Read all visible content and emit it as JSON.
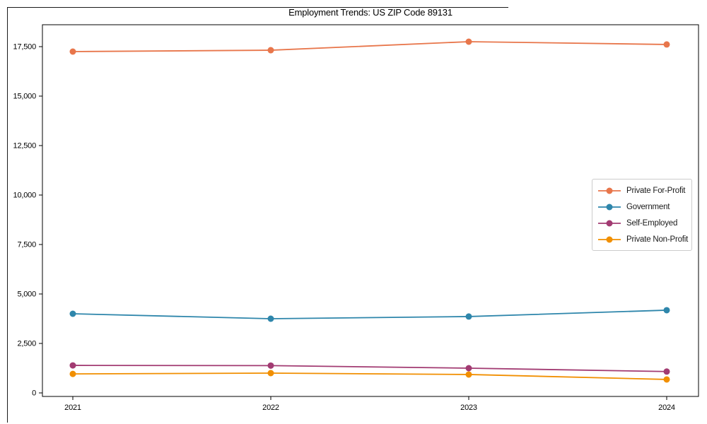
{
  "chart_data": {
    "type": "line",
    "title": "Employment Trends: US ZIP Code 89131",
    "x": [
      2021,
      2022,
      2023,
      2024
    ],
    "series": [
      {
        "name": "Private For-Profit",
        "color": "#E8764B",
        "values": [
          17250,
          17320,
          17750,
          17610
        ]
      },
      {
        "name": "Government",
        "color": "#2E86AB",
        "values": [
          4000,
          3750,
          3860,
          4180
        ]
      },
      {
        "name": "Self-Employed",
        "color": "#A23B72",
        "values": [
          1390,
          1380,
          1250,
          1080
        ]
      },
      {
        "name": "Private Non-Profit",
        "color": "#F18F01",
        "values": [
          960,
          1000,
          930,
          680
        ]
      }
    ],
    "xlabel": "",
    "ylabel": "",
    "ylim": [
      -200,
      18650
    ],
    "yticks": [
      0,
      2500,
      5000,
      7500,
      10000,
      12500,
      15000,
      17500
    ],
    "ytick_labels": [
      "0",
      "2,500",
      "5,000",
      "7,500",
      "10,000",
      "12,500",
      "15,000",
      "17,500"
    ],
    "xtick_labels": [
      "2021",
      "2022",
      "2023",
      "2024"
    ],
    "grid": false,
    "legend_position": "center-right",
    "marker": "circle",
    "axis_color": "#000000",
    "background_color": "#ffffff"
  }
}
